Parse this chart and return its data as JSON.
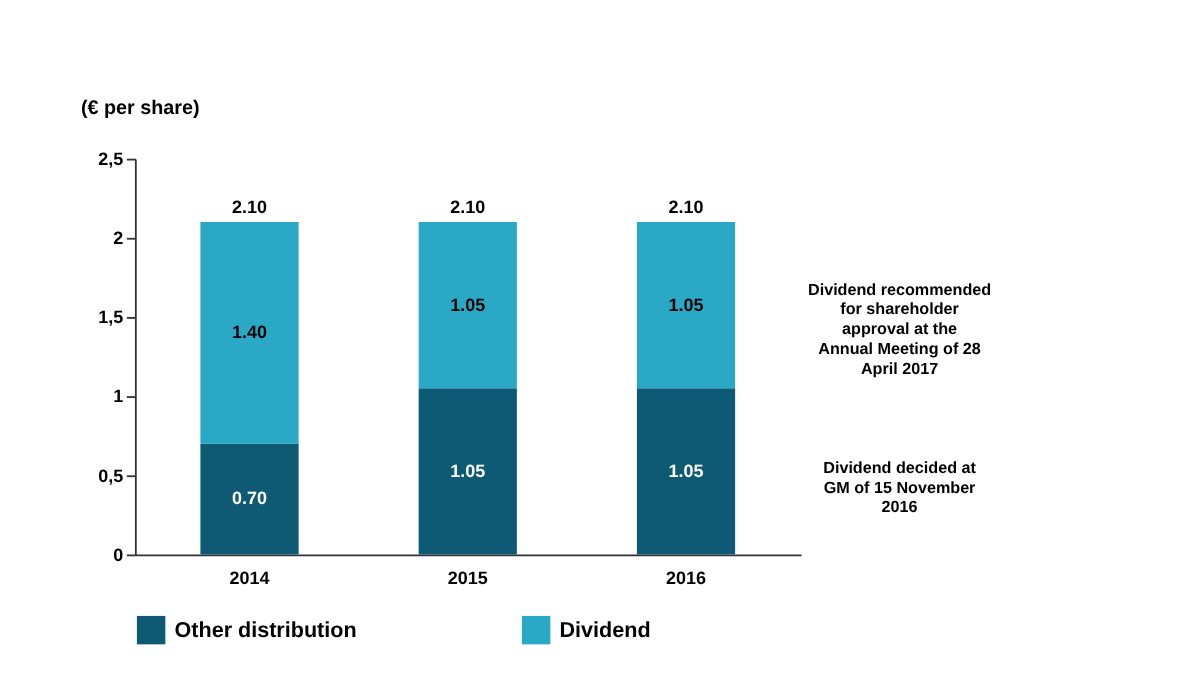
{
  "chart_data": {
    "type": "bar",
    "stacked": true,
    "ylabel": "(€ per share)",
    "categories": [
      "2014",
      "2015",
      "2016"
    ],
    "series": [
      {
        "name": "Other distribution",
        "color": "#0e5a74",
        "values": [
          0.7,
          1.05,
          1.05
        ],
        "value_labels": [
          "0.70",
          "1.05",
          "1.05"
        ]
      },
      {
        "name": "Dividend",
        "color": "#29a9c5",
        "values": [
          1.4,
          1.05,
          1.05
        ],
        "value_labels": [
          "1.40",
          "1.05",
          "1.05"
        ]
      }
    ],
    "totals": [
      "2.10",
      "2.10",
      "2.10"
    ],
    "ylim": [
      0,
      2.5
    ],
    "yticks": [
      0,
      {
        "value": 0.5,
        "label": "0,5"
      },
      1,
      {
        "value": 1.5,
        "label": "1,5"
      },
      2,
      {
        "value": 2.5,
        "label": "2,5"
      }
    ],
    "grid": false,
    "legend": "bottom",
    "annotations": [
      "Dividend recommended for shareholder approval at the Annual Meeting of 28 April 2017",
      "Dividend decided at GM of 15 November 2016"
    ]
  }
}
